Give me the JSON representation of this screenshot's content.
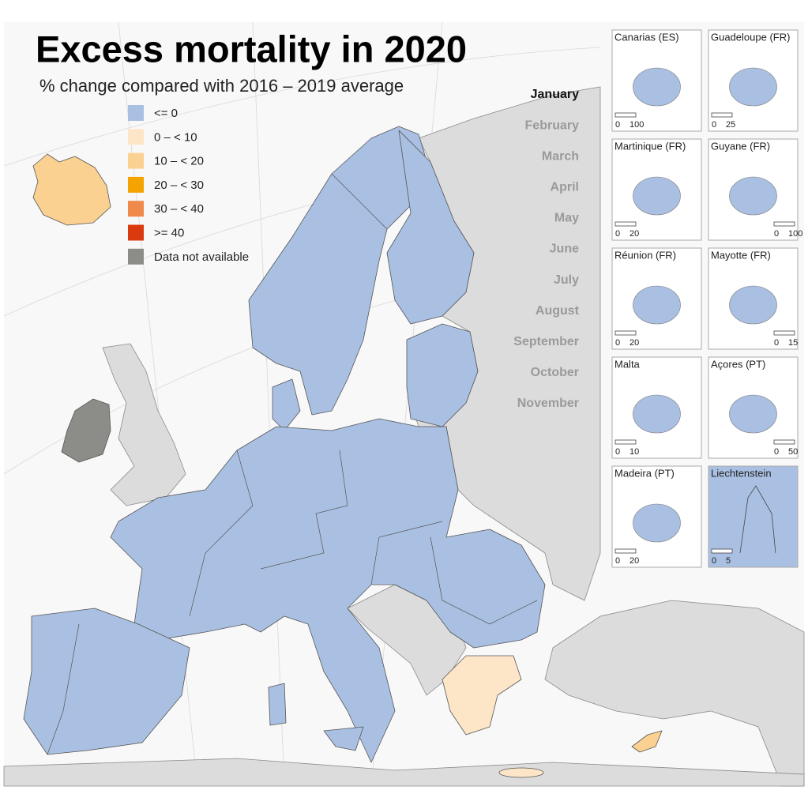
{
  "title": "Excess mortality in 2020",
  "subtitle": "% change compared with 2016 – 2019 average",
  "legend": [
    {
      "label": "<= 0",
      "color": "#aac0e3"
    },
    {
      "label": "0 – < 10",
      "color": "#fde6c8"
    },
    {
      "label": "10 – < 20",
      "color": "#fbd192"
    },
    {
      "label": "20 – < 30",
      "color": "#f5a300"
    },
    {
      "label": "30 – < 40",
      "color": "#ef8a4a"
    },
    {
      "label": ">= 40",
      "color": "#d93a0f"
    },
    {
      "label": "Data not available",
      "color": "#8c8c88"
    }
  ],
  "months": [
    "January",
    "February",
    "March",
    "April",
    "May",
    "June",
    "July",
    "August",
    "September",
    "October",
    "November"
  ],
  "active_month": 0,
  "insets": [
    {
      "name": "Canarias (ES)",
      "scale": [
        0,
        100
      ]
    },
    {
      "name": "Guadeloupe (FR)",
      "scale": [
        0,
        25
      ]
    },
    {
      "name": "Martinique (FR)",
      "scale": [
        0,
        20
      ]
    },
    {
      "name": "Guyane (FR)",
      "scale": [
        0,
        100
      ]
    },
    {
      "name": "Réunion (FR)",
      "scale": [
        0,
        20
      ]
    },
    {
      "name": "Mayotte (FR)",
      "scale": [
        0,
        15
      ]
    },
    {
      "name": "Malta",
      "scale": [
        0,
        10
      ]
    },
    {
      "name": "Açores (PT)",
      "scale": [
        0,
        50
      ]
    },
    {
      "name": "Madeira (PT)",
      "scale": [
        0,
        20
      ]
    },
    {
      "name": "Liechtenstein",
      "scale": [
        0,
        5
      ]
    }
  ]
}
